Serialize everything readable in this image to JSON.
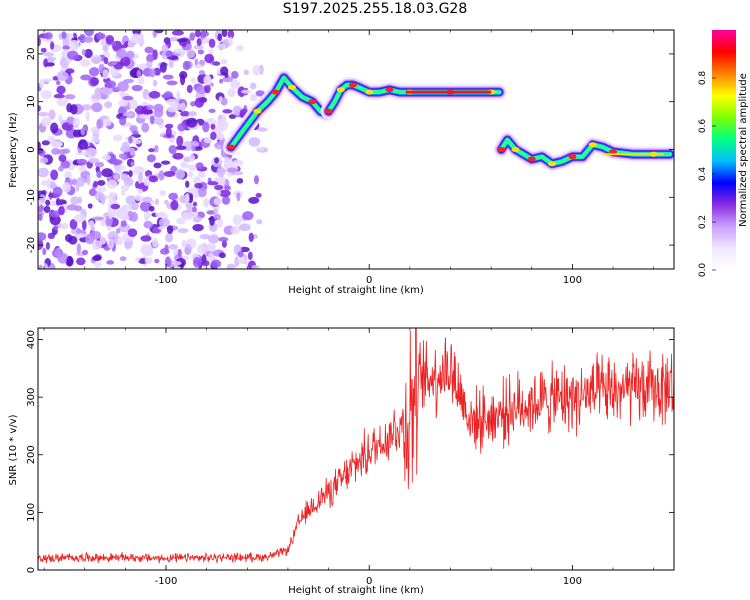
{
  "page": {
    "title": "S197.2025.255.18.03.G28"
  },
  "colorbar": {
    "label": "Normalized spectral amplitude",
    "ticks": [
      "0.0",
      "0.2",
      "0.4",
      "0.6",
      "0.8"
    ],
    "tick_values": [
      0.0,
      0.2,
      0.4,
      0.6,
      0.8
    ],
    "range": [
      0,
      1
    ],
    "colormap": [
      "#ffffff",
      "#f0e6ff",
      "#c8a0ff",
      "#8a2be2",
      "#0000ff",
      "#00c0ff",
      "#00ff80",
      "#80ff00",
      "#ffff00",
      "#ff8000",
      "#ff0000",
      "#ff00a0"
    ]
  },
  "chart_data": [
    {
      "type": "heatmap",
      "name": "spectrogram",
      "xlabel": "Height of straight line (km)",
      "ylabel": "Frequency (Hz)",
      "xlim": [
        -163,
        150
      ],
      "ylim": [
        -25,
        25
      ],
      "xticks": [
        -100,
        0,
        100
      ],
      "yticks": [
        -20,
        -10,
        0,
        10,
        20
      ],
      "noise_region_x": [
        -163,
        -50
      ],
      "ridge": [
        {
          "x": [
            -68,
            -62,
            -55,
            -50,
            -46,
            -42,
            -38,
            -33,
            -28,
            -24,
            -21
          ],
          "y": [
            0.5,
            4,
            8,
            10,
            12,
            15,
            13,
            11,
            10,
            8,
            7.5
          ]
        },
        {
          "x": [
            -20,
            -17,
            -14,
            -11,
            -8,
            -5,
            0,
            5,
            10,
            15,
            20,
            30,
            40,
            50,
            60,
            64
          ],
          "y": [
            8,
            10,
            12.5,
            13.5,
            13.5,
            13,
            12,
            12,
            12.5,
            12,
            12,
            12,
            12,
            12,
            12,
            12
          ]
        },
        {
          "x": [
            65,
            68,
            72,
            76,
            80,
            85,
            90,
            95,
            100,
            105,
            110,
            115,
            120,
            130,
            140,
            148
          ],
          "y": [
            0,
            2,
            0,
            -1,
            -2,
            -1.5,
            -3,
            -2.5,
            -1.5,
            -1.5,
            1,
            0.5,
            -0.5,
            -1,
            -1,
            -1
          ]
        }
      ]
    },
    {
      "type": "line",
      "name": "snr",
      "xlabel": "Height of straight line (km)",
      "ylabel": "SNR (10 * v/v)",
      "xlim": [
        -163,
        150
      ],
      "ylim": [
        0,
        420
      ],
      "xticks": [
        -100,
        0,
        100
      ],
      "yticks": [
        0,
        100,
        200,
        300,
        400
      ],
      "series": [
        {
          "name": "SNR",
          "color": "#ee2222",
          "x": [
            -163,
            -150,
            -140,
            -130,
            -120,
            -110,
            -100,
            -90,
            -80,
            -70,
            -60,
            -50,
            -45,
            -40,
            -37,
            -35,
            -32,
            -28,
            -24,
            -20,
            -15,
            -10,
            -5,
            0,
            5,
            10,
            15,
            18,
            20,
            22,
            25,
            30,
            35,
            40,
            50,
            60,
            70,
            80,
            90,
            100,
            110,
            120,
            130,
            140,
            150
          ],
          "values": [
            20,
            21,
            22,
            21,
            22,
            21,
            20,
            21,
            21,
            22,
            22,
            23,
            28,
            35,
            60,
            80,
            95,
            110,
            125,
            135,
            150,
            170,
            190,
            205,
            220,
            235,
            250,
            260,
            280,
            300,
            330,
            335,
            345,
            350,
            258,
            265,
            280,
            290,
            295,
            300,
            305,
            310,
            312,
            315,
            320
          ]
        }
      ]
    }
  ]
}
